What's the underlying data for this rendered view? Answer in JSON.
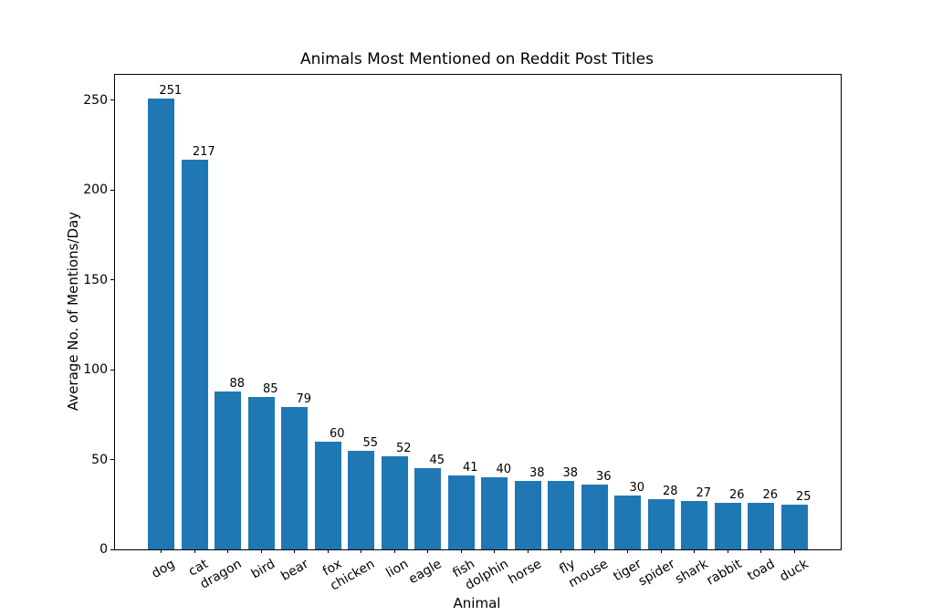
{
  "chart_data": {
    "type": "bar",
    "title": "Animals Most Mentioned on Reddit Post Titles",
    "xlabel": "Animal",
    "ylabel": "Average No. of Mentions/Day",
    "categories": [
      "dog",
      "cat",
      "dragon",
      "bird",
      "bear",
      "fox",
      "chicken",
      "lion",
      "eagle",
      "fish",
      "dolphin",
      "horse",
      "fly",
      "mouse",
      "tiger",
      "spider",
      "shark",
      "rabbit",
      "toad",
      "duck"
    ],
    "values": [
      251,
      217,
      88,
      85,
      79,
      60,
      55,
      52,
      45,
      41,
      40,
      38,
      38,
      36,
      30,
      28,
      27,
      26,
      26,
      25
    ],
    "bar_labels": [
      "251",
      "217",
      "88",
      "85",
      "79",
      "60",
      "55",
      "52",
      "45",
      "41",
      "40",
      "38",
      "38",
      "36",
      "30",
      "28",
      "27",
      "26",
      "26",
      "25"
    ],
    "yticks": [
      0,
      50,
      100,
      150,
      200,
      250
    ],
    "ylim": [
      0,
      264
    ],
    "grid": false,
    "legend_position": "none",
    "bar_color": "#1f77b4",
    "axis_color": "#000000",
    "tick_label_rotation_deg": 30
  }
}
